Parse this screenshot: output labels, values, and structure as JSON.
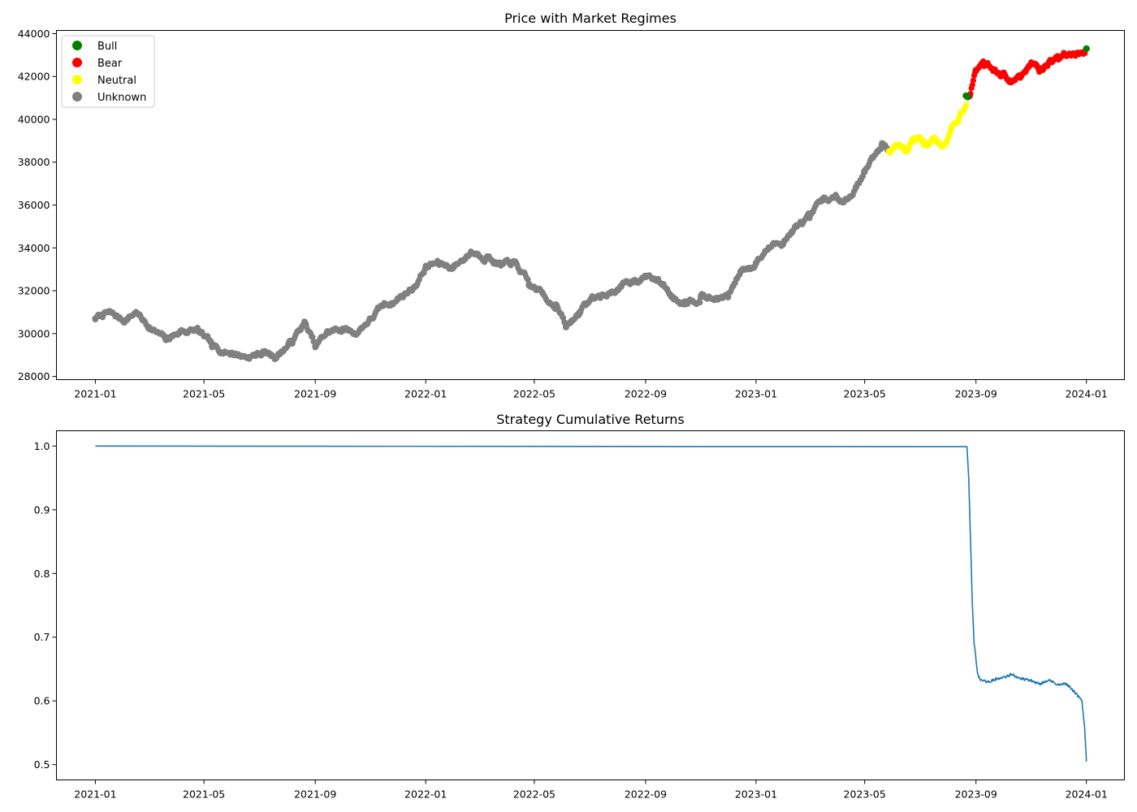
{
  "colors": {
    "bull": "#008000",
    "bear": "#ff0000",
    "neutral": "#ffff00",
    "unknown": "#808080",
    "returns_line": "#1f77b4"
  },
  "chart_data": [
    {
      "type": "scatter",
      "title": "Price with Market Regimes",
      "xlabel": "",
      "ylabel": "",
      "x_type": "date",
      "xlim": [
        "2020-11-19",
        "2024-02-12"
      ],
      "ylim": [
        27850,
        44150
      ],
      "x_ticks": [
        "2021-01",
        "2021-05",
        "2021-09",
        "2022-01",
        "2022-05",
        "2022-09",
        "2023-01",
        "2023-05",
        "2023-09",
        "2024-01"
      ],
      "y_ticks": [
        28000,
        30000,
        32000,
        34000,
        36000,
        38000,
        40000,
        42000,
        44000
      ],
      "y_tick_labels": [
        "28000",
        "30000",
        "32000",
        "34000",
        "36000",
        "38000",
        "40000",
        "42000",
        "44000"
      ],
      "legend": {
        "position": "top-left",
        "entries": [
          {
            "label": "Bull",
            "color": "#008000"
          },
          {
            "label": "Bear",
            "color": "#ff0000"
          },
          {
            "label": "Neutral",
            "color": "#ffff00"
          },
          {
            "label": "Unknown",
            "color": "#808080"
          }
        ]
      },
      "grid": false,
      "series": [
        {
          "name": "Unknown",
          "color": "#808080",
          "points": [
            [
              "2021-01-01",
              30700
            ],
            [
              "2021-01-15",
              31000
            ],
            [
              "2021-02-01",
              30600
            ],
            [
              "2021-02-15",
              31000
            ],
            [
              "2021-03-01",
              30300
            ],
            [
              "2021-03-20",
              29700
            ],
            [
              "2021-04-05",
              30100
            ],
            [
              "2021-04-25",
              30150
            ],
            [
              "2021-05-10",
              29400
            ],
            [
              "2021-06-01",
              29100
            ],
            [
              "2021-06-20",
              28900
            ],
            [
              "2021-07-05",
              29100
            ],
            [
              "2021-07-20",
              28900
            ],
            [
              "2021-08-05",
              29600
            ],
            [
              "2021-08-20",
              30500
            ],
            [
              "2021-09-01",
              29400
            ],
            [
              "2021-09-15",
              30100
            ],
            [
              "2021-10-01",
              30200
            ],
            [
              "2021-10-15",
              30000
            ],
            [
              "2021-11-01",
              30700
            ],
            [
              "2021-11-15",
              31300
            ],
            [
              "2021-12-01",
              31600
            ],
            [
              "2021-12-20",
              32200
            ],
            [
              "2022-01-01",
              33100
            ],
            [
              "2022-01-15",
              33300
            ],
            [
              "2022-02-01",
              33100
            ],
            [
              "2022-02-20",
              33800
            ],
            [
              "2022-03-10",
              33600
            ],
            [
              "2022-03-25",
              33200
            ],
            [
              "2022-04-10",
              33300
            ],
            [
              "2022-04-25",
              32300
            ],
            [
              "2022-05-10",
              31900
            ],
            [
              "2022-05-25",
              31300
            ],
            [
              "2022-06-05",
              30300
            ],
            [
              "2022-06-20",
              31000
            ],
            [
              "2022-07-05",
              31700
            ],
            [
              "2022-07-20",
              31800
            ],
            [
              "2022-08-05",
              32200
            ],
            [
              "2022-08-20",
              32500
            ],
            [
              "2022-09-05",
              32700
            ],
            [
              "2022-09-20",
              32300
            ],
            [
              "2022-10-01",
              31700
            ],
            [
              "2022-10-15",
              31500
            ],
            [
              "2022-11-01",
              31700
            ],
            [
              "2022-11-15",
              31600
            ],
            [
              "2022-12-01",
              31700
            ],
            [
              "2022-12-15",
              32900
            ],
            [
              "2023-01-01",
              33300
            ],
            [
              "2023-01-15",
              34000
            ],
            [
              "2023-02-01",
              34300
            ],
            [
              "2023-02-15",
              35000
            ],
            [
              "2023-03-01",
              35400
            ],
            [
              "2023-03-15",
              36200
            ],
            [
              "2023-04-01",
              36300
            ],
            [
              "2023-04-15",
              36400
            ],
            [
              "2023-05-01",
              37600
            ],
            [
              "2023-05-10",
              38200
            ],
            [
              "2023-05-20",
              38800
            ],
            [
              "2023-05-27",
              38600
            ]
          ]
        },
        {
          "name": "Neutral",
          "color": "#ffff00",
          "points": [
            [
              "2023-05-28",
              38500
            ],
            [
              "2023-06-05",
              38800
            ],
            [
              "2023-06-15",
              38500
            ],
            [
              "2023-06-25",
              39000
            ],
            [
              "2023-07-05",
              38900
            ],
            [
              "2023-07-15",
              39100
            ],
            [
              "2023-07-25",
              38800
            ],
            [
              "2023-08-05",
              39600
            ],
            [
              "2023-08-15",
              40300
            ],
            [
              "2023-08-22",
              41000
            ]
          ]
        },
        {
          "name": "Bear",
          "color": "#ff0000",
          "points": [
            [
              "2023-08-25",
              41100
            ],
            [
              "2023-09-01",
              42300
            ],
            [
              "2023-09-10",
              42500
            ],
            [
              "2023-09-20",
              42300
            ],
            [
              "2023-10-01",
              42100
            ],
            [
              "2023-10-10",
              41800
            ],
            [
              "2023-10-20",
              42000
            ],
            [
              "2023-11-01",
              42600
            ],
            [
              "2023-11-10",
              42300
            ],
            [
              "2023-11-20",
              42600
            ],
            [
              "2023-12-01",
              42800
            ],
            [
              "2023-12-10",
              43000
            ],
            [
              "2023-12-20",
              43000
            ],
            [
              "2023-12-30",
              43100
            ]
          ]
        },
        {
          "name": "Bull",
          "color": "#008000",
          "points": [
            [
              "2023-08-21",
              41100
            ],
            [
              "2023-08-23",
              41050
            ],
            [
              "2024-01-01",
              43300
            ]
          ]
        }
      ]
    },
    {
      "type": "line",
      "title": "Strategy Cumulative Returns",
      "xlabel": "",
      "ylabel": "",
      "x_type": "date",
      "xlim": [
        "2020-11-19",
        "2024-02-12"
      ],
      "ylim": [
        0.476,
        1.024
      ],
      "x_ticks": [
        "2021-01",
        "2021-05",
        "2021-09",
        "2022-01",
        "2022-05",
        "2022-09",
        "2023-01",
        "2023-05",
        "2023-09",
        "2024-01"
      ],
      "y_ticks": [
        0.5,
        0.6,
        0.7,
        0.8,
        0.9,
        1.0
      ],
      "y_tick_labels": [
        "0.5",
        "0.6",
        "0.7",
        "0.8",
        "0.9",
        "1.0"
      ],
      "grid": false,
      "series": [
        {
          "color": "#1f77b4",
          "points": [
            [
              "2021-01-01",
              1.0
            ],
            [
              "2023-08-22",
              1.0
            ],
            [
              "2023-08-24",
              0.95
            ],
            [
              "2023-08-26",
              0.85
            ],
            [
              "2023-08-28",
              0.75
            ],
            [
              "2023-08-30",
              0.69
            ],
            [
              "2023-09-03",
              0.64
            ],
            [
              "2023-09-07",
              0.632
            ],
            [
              "2023-09-15",
              0.63
            ],
            [
              "2023-09-25",
              0.635
            ],
            [
              "2023-10-05",
              0.638
            ],
            [
              "2023-10-10",
              0.642
            ],
            [
              "2023-10-20",
              0.635
            ],
            [
              "2023-11-01",
              0.632
            ],
            [
              "2023-11-10",
              0.626
            ],
            [
              "2023-11-20",
              0.633
            ],
            [
              "2023-12-01",
              0.625
            ],
            [
              "2023-12-10",
              0.627
            ],
            [
              "2023-12-20",
              0.612
            ],
            [
              "2023-12-27",
              0.6
            ],
            [
              "2023-12-30",
              0.56
            ],
            [
              "2024-01-01",
              0.505
            ]
          ]
        }
      ]
    }
  ]
}
